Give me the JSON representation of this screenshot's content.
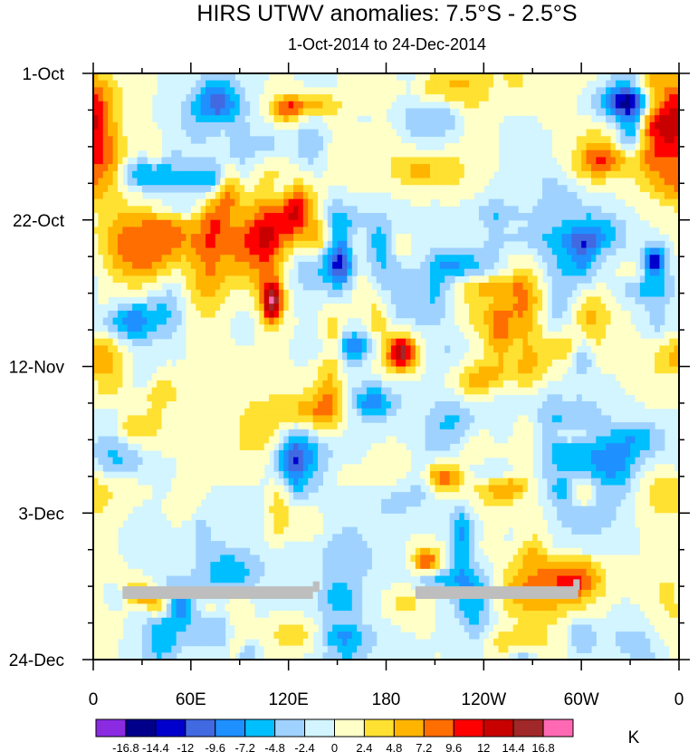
{
  "chart_data": {
    "type": "heatmap",
    "title": "HIRS UTWV anomalies: 7.5°S - 2.5°S",
    "subtitle": "1-Oct-2014 to 24-Dec-2014",
    "x_ticks": [
      "0",
      "60E",
      "120E",
      "180",
      "120W",
      "60W",
      "0"
    ],
    "x_range": [
      0,
      360
    ],
    "y_ticks": [
      "1-Oct",
      "22-Oct",
      "12-Nov",
      "3-Dec",
      "24-Dec"
    ],
    "y_range_days": [
      0,
      84
    ],
    "colorbar": {
      "unit": "K",
      "levels": [
        "-16.8",
        "-14.4",
        "-12",
        "-9.6",
        "-7.2",
        "-4.8",
        "-2.4",
        "0",
        "2.4",
        "4.8",
        "7.2",
        "9.6",
        "12",
        "14.4",
        "16.8"
      ],
      "colors": [
        "#8a2be2",
        "#00008b",
        "#0000cd",
        "#4169e1",
        "#1e90ff",
        "#00bfff",
        "#a0d2ff",
        "#d2f5ff",
        "#ffffc8",
        "#ffe132",
        "#ffb400",
        "#ff6e00",
        "#ff0000",
        "#c80000",
        "#a02828",
        "#ff69b4"
      ]
    },
    "missing_data_color": "#bebebe",
    "missing_data_bars": [
      {
        "lon_start": 18,
        "lon_end": 135,
        "day_start": 73.5,
        "day_end": 75.3
      },
      {
        "lon_start": 135,
        "lon_end": 139,
        "day_start": 72.8,
        "day_end": 74.3
      },
      {
        "lon_start": 198,
        "lon_end": 298,
        "day_start": 73.5,
        "day_end": 75.3
      },
      {
        "lon_start": 295,
        "lon_end": 299,
        "day_start": 72.5,
        "day_end": 74.0
      }
    ]
  }
}
